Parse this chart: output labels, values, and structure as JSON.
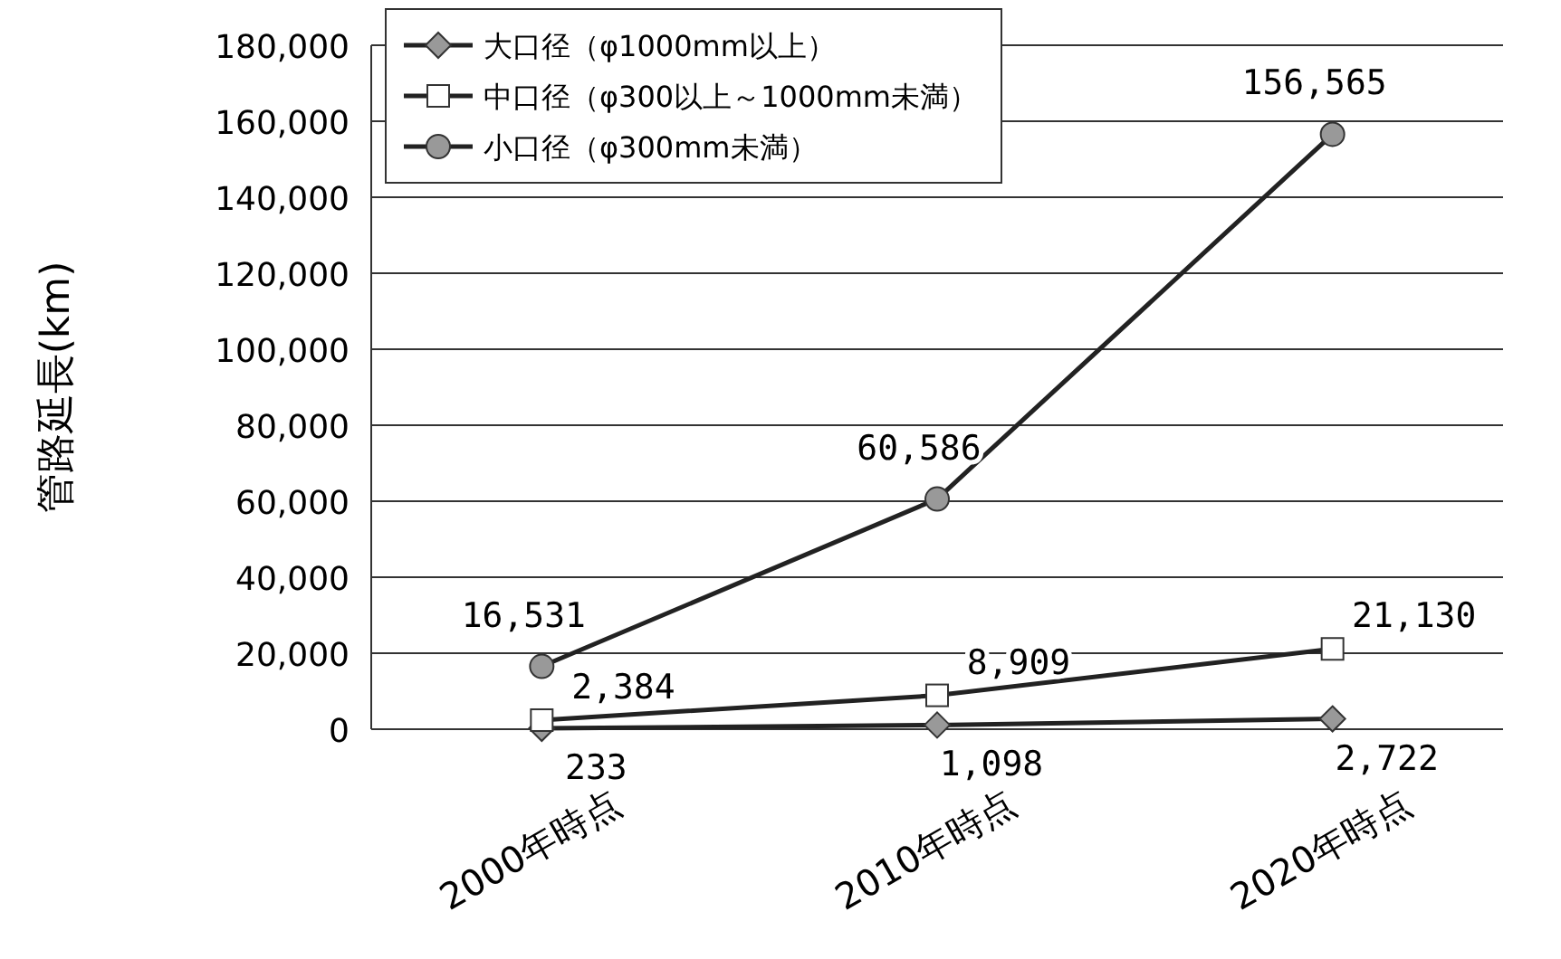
{
  "chart_data": {
    "type": "line",
    "ylabel": "管路延長(km)",
    "categories": [
      "2000年時点",
      "2010年時点",
      "2020年時点"
    ],
    "series": [
      {
        "name": "大口径（φ1000mm以上）",
        "color": "#222222",
        "marker": "diamond",
        "values": [
          233,
          1098,
          2722
        ],
        "value_labels": [
          "233",
          "1,098",
          "2,722"
        ]
      },
      {
        "name": "中口径（φ300以上～1000mm未満）",
        "color": "#222222",
        "marker": "square",
        "values": [
          2384,
          8909,
          21130
        ],
        "value_labels": [
          "2,384",
          "8,909",
          "21,130"
        ]
      },
      {
        "name": "小口径（φ300mm未満）",
        "color": "#222222",
        "marker": "circle",
        "values": [
          16531,
          60586,
          156565
        ],
        "value_labels": [
          "16,531",
          "60,586",
          "156,565"
        ]
      }
    ],
    "ylim": [
      0,
      180000
    ],
    "yticks": [
      0,
      {
        "value": 20000,
        "label": "20,000"
      },
      {
        "value": 40000,
        "label": "40,000"
      },
      {
        "value": 60000,
        "label": "60,000"
      },
      {
        "value": 80000,
        "label": "80,000"
      },
      {
        "value": 100000,
        "label": "100,000"
      },
      {
        "value": 120000,
        "label": "120,000"
      },
      {
        "value": 140000,
        "label": "140,000"
      },
      {
        "value": 160000,
        "label": "160,000"
      },
      {
        "value": 180000,
        "label": "180,000"
      }
    ],
    "grid": "y",
    "legend": "top left",
    "line_style": "solid"
  }
}
